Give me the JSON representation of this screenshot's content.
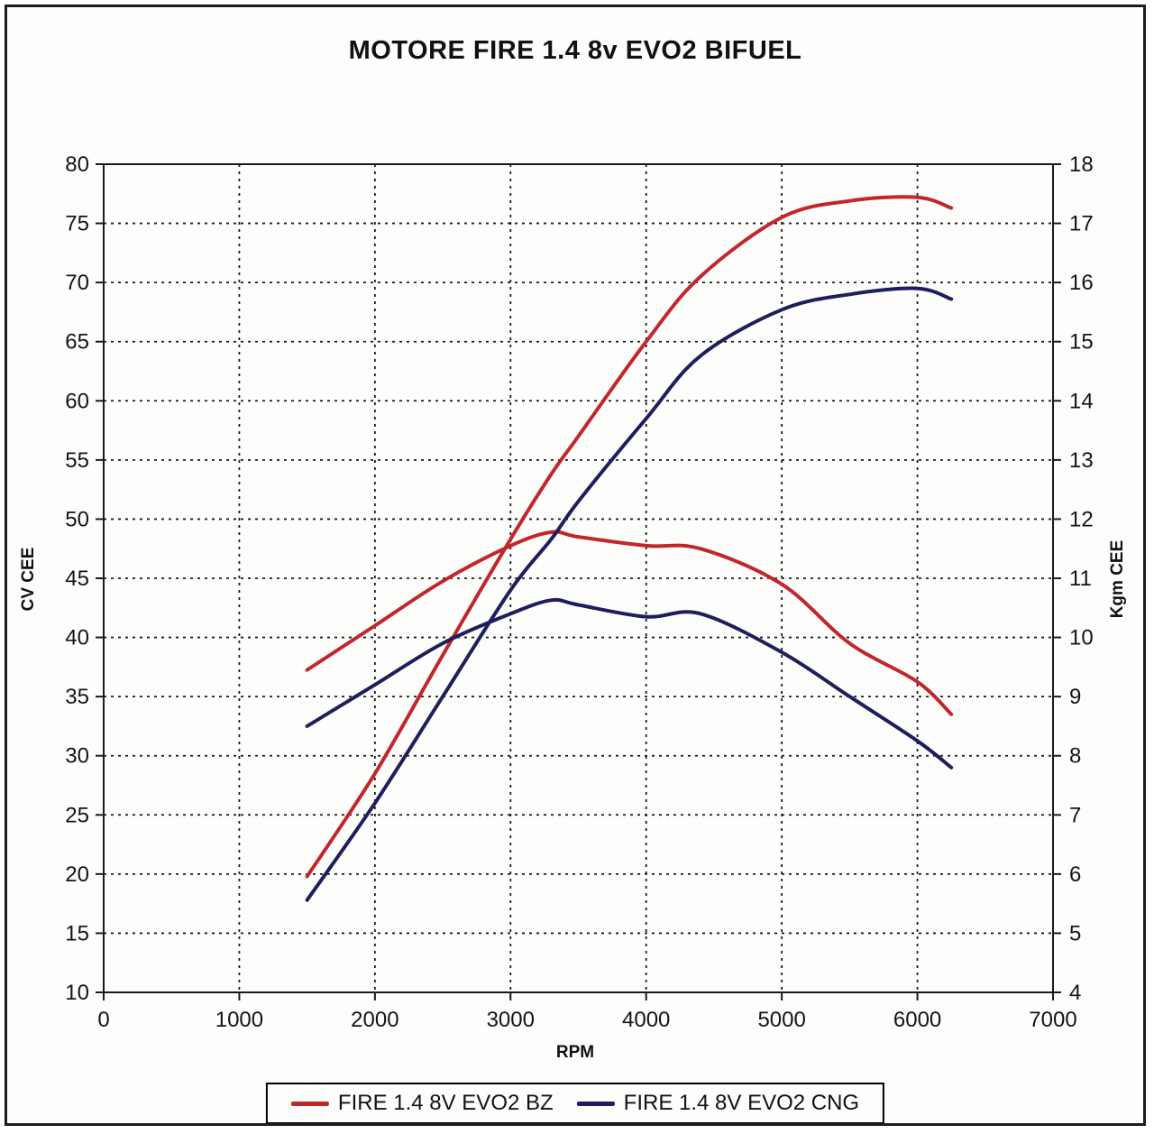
{
  "title": "MOTORE FIRE 1.4 8v EVO2 BIFUEL",
  "axes": {
    "x_label": "RPM",
    "y_left_label": "CV CEE",
    "y_right_label": "Kgm CEE"
  },
  "legend": {
    "items": [
      {
        "label": "FIRE 1.4 8V EVO2 BZ",
        "color": "#c2262b"
      },
      {
        "label": "FIRE 1.4 8V EVO2 CNG",
        "color": "#1e1e5c"
      }
    ]
  },
  "chart_data": {
    "type": "line",
    "title": "MOTORE FIRE 1.4 8v EVO2 BIFUEL",
    "xlabel": "RPM",
    "ylabel_left": "CV CEE",
    "ylabel_right": "Kgm CEE",
    "x_range": [
      0,
      7000
    ],
    "y_left_range": [
      10,
      80
    ],
    "y_right_range": [
      4,
      18
    ],
    "x_ticks": [
      0,
      1000,
      2000,
      3000,
      4000,
      5000,
      6000,
      7000
    ],
    "y_left_ticks": [
      10,
      15,
      20,
      25,
      30,
      35,
      40,
      45,
      50,
      55,
      60,
      65,
      70,
      75,
      80
    ],
    "y_right_ticks": [
      4,
      5,
      6,
      7,
      8,
      9,
      10,
      11,
      12,
      13,
      14,
      15,
      16,
      17,
      18
    ],
    "grid": "dashed",
    "legend_position": "bottom",
    "rpm": [
      1500,
      2000,
      2500,
      3000,
      3300,
      3500,
      4000,
      4400,
      5000,
      5500,
      6000,
      6250
    ],
    "series": [
      {
        "name": "FIRE 1.4 8V EVO2 BZ",
        "color": "#c2262b",
        "power_cv": [
          19.8,
          28.5,
          38.5,
          48.3,
          53.8,
          57.0,
          65.0,
          70.5,
          75.5,
          76.9,
          77.2,
          76.3
        ],
        "torque_kgm": [
          9.45,
          10.2,
          10.95,
          11.55,
          11.78,
          11.7,
          11.55,
          11.5,
          10.9,
          9.9,
          9.25,
          8.7
        ]
      },
      {
        "name": "FIRE 1.4 8V EVO2 CNG",
        "color": "#1e1e5c",
        "power_cv": [
          17.8,
          26.0,
          35.0,
          44.0,
          48.3,
          51.5,
          58.5,
          63.8,
          67.7,
          69.0,
          69.5,
          68.6
        ],
        "torque_kgm": [
          8.5,
          9.2,
          9.9,
          10.4,
          10.63,
          10.55,
          10.35,
          10.4,
          9.75,
          9.0,
          8.25,
          7.8
        ]
      }
    ]
  }
}
